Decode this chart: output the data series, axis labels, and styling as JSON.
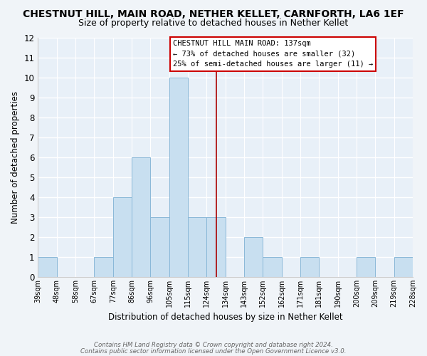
{
  "title": "CHESTNUT HILL, MAIN ROAD, NETHER KELLET, CARNFORTH, LA6 1EF",
  "subtitle": "Size of property relative to detached houses in Nether Kellet",
  "xlabel": "Distribution of detached houses by size in Nether Kellet",
  "ylabel": "Number of detached properties",
  "bin_labels": [
    "39sqm",
    "48sqm",
    "58sqm",
    "67sqm",
    "77sqm",
    "86sqm",
    "96sqm",
    "105sqm",
    "115sqm",
    "124sqm",
    "134sqm",
    "143sqm",
    "152sqm",
    "162sqm",
    "171sqm",
    "181sqm",
    "190sqm",
    "200sqm",
    "209sqm",
    "219sqm",
    "228sqm"
  ],
  "bar_values": [
    1,
    0,
    0,
    1,
    4,
    6,
    3,
    10,
    3,
    3,
    0,
    2,
    1,
    0,
    1,
    0,
    0,
    1,
    0,
    1
  ],
  "bar_color": "#c8dff0",
  "bar_edge_color": "#8ab8d8",
  "vline_position": 9.5,
  "vline_color": "#aa0000",
  "ylim": [
    0,
    12
  ],
  "yticks": [
    0,
    1,
    2,
    3,
    4,
    5,
    6,
    7,
    8,
    9,
    10,
    11,
    12
  ],
  "annotation_title": "CHESTNUT HILL MAIN ROAD: 137sqm",
  "annotation_line1": "← 73% of detached houses are smaller (32)",
  "annotation_line2": "25% of semi-detached houses are larger (11) →",
  "footnote1": "Contains HM Land Registry data © Crown copyright and database right 2024.",
  "footnote2": "Contains public sector information licensed under the Open Government Licence v3.0.",
  "background_color": "#f0f4f8",
  "plot_bg_color": "#e8f0f8",
  "grid_color": "#ffffff",
  "title_fontsize": 10,
  "subtitle_fontsize": 9
}
